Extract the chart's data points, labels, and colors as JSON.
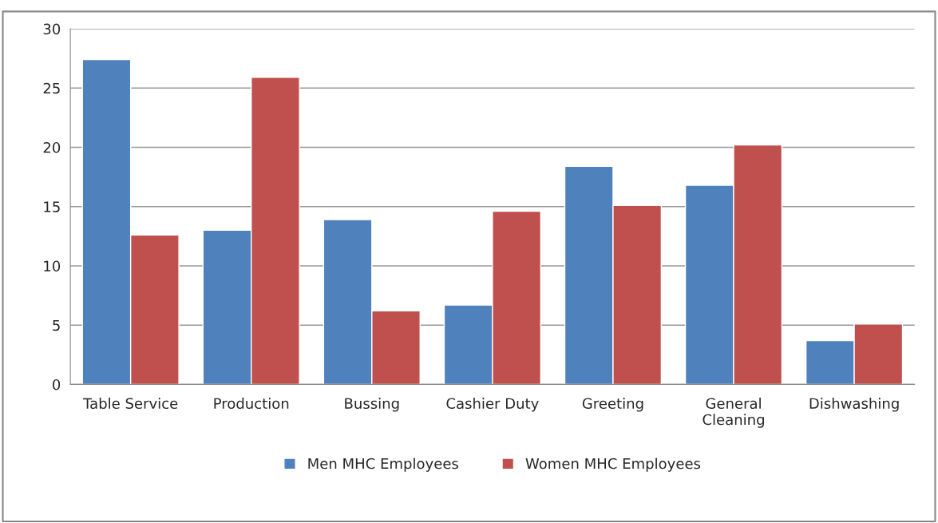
{
  "chart_data": {
    "type": "bar",
    "categories": [
      "Table Service",
      "Production",
      "Bussing",
      "Cashier Duty",
      "Greeting",
      "General\nCleaning",
      "Dishwashing"
    ],
    "series": [
      {
        "name": "Men MHC Employees",
        "color": "#4f81bd",
        "values": [
          27.4,
          13.0,
          13.9,
          6.7,
          18.4,
          16.8,
          3.7
        ]
      },
      {
        "name": "Women MHC Employees",
        "color": "#c0504d",
        "values": [
          12.6,
          25.9,
          6.2,
          14.6,
          15.1,
          20.2,
          5.1
        ]
      }
    ],
    "ylim": [
      0,
      30
    ],
    "yticks": [
      0,
      5,
      10,
      15,
      20,
      25,
      30
    ],
    "grid": "y",
    "legend": "bottom"
  }
}
